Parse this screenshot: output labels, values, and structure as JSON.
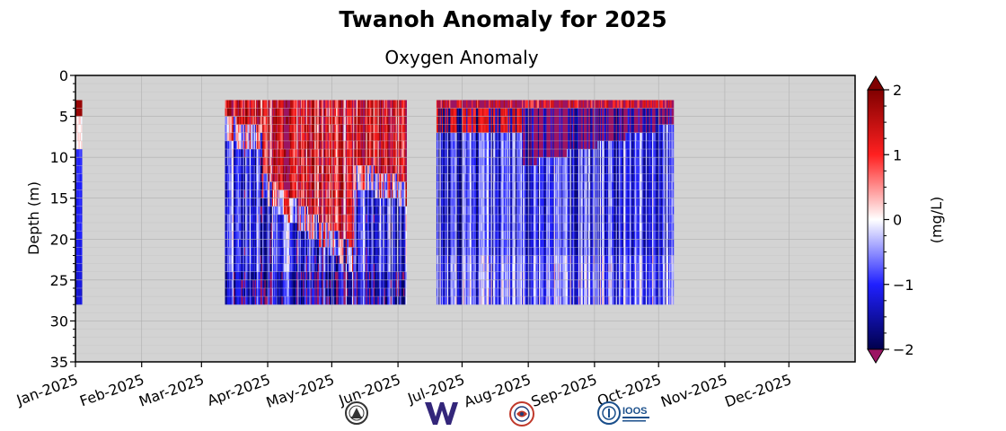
{
  "chart_data": {
    "type": "heatmap",
    "title": "Twanoh Anomaly for 2025",
    "subtitle": "Oxygen Anomaly",
    "ylabel": "Depth (m)",
    "xlabel": "",
    "x_tick_labels": [
      "Jan-2025",
      "Feb-2025",
      "Mar-2025",
      "Apr-2025",
      "May-2025",
      "Jun-2025",
      "Jul-2025",
      "Aug-2025",
      "Sep-2025",
      "Oct-2025",
      "Nov-2025",
      "Dec-2025"
    ],
    "y_ticks": [
      0,
      5,
      10,
      15,
      20,
      25,
      30,
      35
    ],
    "ylim": [
      35,
      0
    ],
    "y_inverted": true,
    "grid": true,
    "colorbar": {
      "label": "(mg/L)",
      "ticks": [
        2,
        1,
        0,
        -1,
        -2
      ],
      "tick_labels": [
        "2",
        "1",
        "0",
        "−1",
        "−2"
      ],
      "vmin": -2,
      "vmax": 2,
      "extend": "both",
      "colormap": "seismic",
      "over_color": "#9b1563",
      "under_color": "#9b1563"
    },
    "background_color": "#d3d3d3",
    "data_depth_range": [
      3,
      28
    ],
    "segments": [
      {
        "start": "2025-01-01",
        "end": "2025-01-04",
        "pattern": "early-winter"
      },
      {
        "start": "2025-03-12",
        "end": "2025-06-05",
        "pattern": "spring"
      },
      {
        "start": "2025-06-19",
        "end": "2025-10-08",
        "pattern": "summer"
      }
    ]
  },
  "logos": [
    {
      "name": "lab-seal-logo",
      "color": "#333333"
    },
    {
      "name": "uw-w-logo",
      "text": "W",
      "color": "#33267a"
    },
    {
      "name": "tribal-logo",
      "color": "#c0392b"
    },
    {
      "name": "ioos-logo",
      "text": "IOOS",
      "color": "#1a4f8b"
    }
  ]
}
